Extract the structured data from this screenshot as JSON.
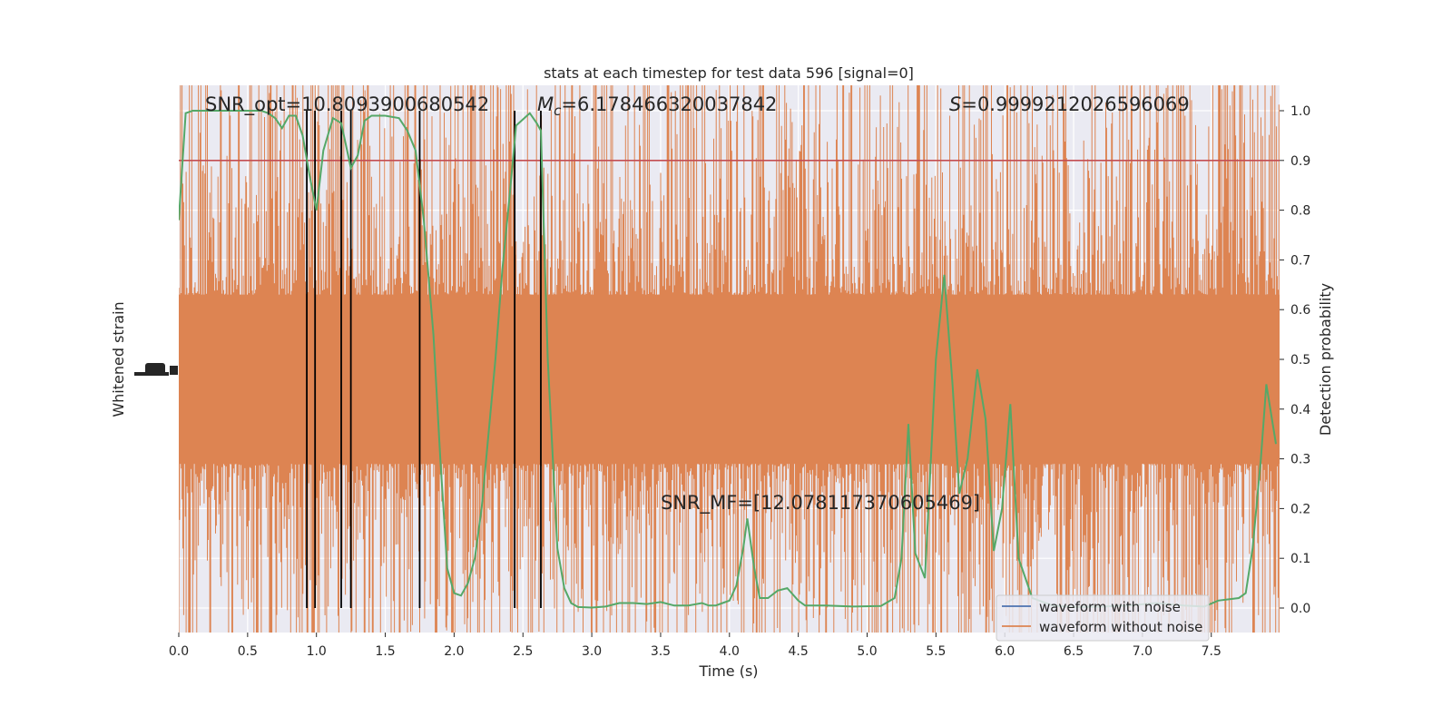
{
  "chart_data": {
    "type": "line",
    "title": "stats at each timestep for test data 596 [signal=0]",
    "xlabel": "Time (s)",
    "ylabel_left": "Whitened strain",
    "ylabel_right": "Detection probability",
    "xlim": [
      0.0,
      8.0
    ],
    "ylim_right": [
      -0.05,
      1.05
    ],
    "x_ticks": [
      "0.0",
      "0.5",
      "1.0",
      "1.5",
      "2.0",
      "2.5",
      "3.0",
      "3.5",
      "4.0",
      "4.5",
      "5.0",
      "5.5",
      "6.0",
      "6.5",
      "7.0",
      "7.5"
    ],
    "y_ticks_right": [
      "0.0",
      "0.1",
      "0.2",
      "0.3",
      "0.4",
      "0.5",
      "0.6",
      "0.7",
      "0.8",
      "0.9",
      "1.0"
    ],
    "grid": true,
    "legend_placement": "lower-right",
    "annotations": {
      "snr_opt": "SNR_opt=10.8093900680542",
      "mc_symbol": "M",
      "mc_sub": "c",
      "mc_value": "=6.178466320037842",
      "s_symbol": "S",
      "s_value": "=0.9999212026596069",
      "snr_mf": "SNR_MF=[12.078117370605469]"
    },
    "threshold": 0.9,
    "detection_lines_x": [
      0.93,
      0.99,
      1.18,
      1.25,
      1.75,
      2.44,
      2.63
    ],
    "series": [
      {
        "name": "waveform with noise",
        "color": "#4c72b0",
        "kind": "noise",
        "points": []
      },
      {
        "name": "waveform without noise",
        "color": "#dd8452",
        "kind": "noise",
        "band_center": 0.46,
        "band_core_halfwidth": 0.17,
        "points": []
      },
      {
        "name": "",
        "color": "#55a868",
        "kind": "line",
        "points": [
          [
            0.0,
            0.78
          ],
          [
            0.05,
            0.995
          ],
          [
            0.1,
            1.0
          ],
          [
            0.2,
            1.0
          ],
          [
            0.3,
            1.0
          ],
          [
            0.4,
            1.0
          ],
          [
            0.5,
            1.0
          ],
          [
            0.6,
            1.0
          ],
          [
            0.65,
            0.995
          ],
          [
            0.7,
            0.985
          ],
          [
            0.75,
            0.965
          ],
          [
            0.8,
            0.99
          ],
          [
            0.85,
            0.99
          ],
          [
            0.9,
            0.95
          ],
          [
            0.95,
            0.87
          ],
          [
            1.0,
            0.8
          ],
          [
            1.05,
            0.92
          ],
          [
            1.12,
            0.985
          ],
          [
            1.18,
            0.975
          ],
          [
            1.25,
            0.885
          ],
          [
            1.3,
            0.91
          ],
          [
            1.35,
            0.98
          ],
          [
            1.4,
            0.99
          ],
          [
            1.5,
            0.99
          ],
          [
            1.6,
            0.985
          ],
          [
            1.66,
            0.96
          ],
          [
            1.72,
            0.92
          ],
          [
            1.78,
            0.78
          ],
          [
            1.85,
            0.55
          ],
          [
            1.9,
            0.3
          ],
          [
            1.95,
            0.08
          ],
          [
            2.0,
            0.03
          ],
          [
            2.05,
            0.025
          ],
          [
            2.1,
            0.05
          ],
          [
            2.15,
            0.1
          ],
          [
            2.2,
            0.2
          ],
          [
            2.25,
            0.35
          ],
          [
            2.3,
            0.5
          ],
          [
            2.35,
            0.68
          ],
          [
            2.4,
            0.82
          ],
          [
            2.45,
            0.97
          ],
          [
            2.55,
            0.995
          ],
          [
            2.6,
            0.975
          ],
          [
            2.63,
            0.96
          ],
          [
            2.68,
            0.5
          ],
          [
            2.75,
            0.12
          ],
          [
            2.8,
            0.04
          ],
          [
            2.85,
            0.01
          ],
          [
            2.9,
            0.002
          ],
          [
            3.0,
            0.001
          ],
          [
            3.1,
            0.003
          ],
          [
            3.2,
            0.01
          ],
          [
            3.3,
            0.01
          ],
          [
            3.4,
            0.008
          ],
          [
            3.5,
            0.012
          ],
          [
            3.6,
            0.005
          ],
          [
            3.7,
            0.005
          ],
          [
            3.8,
            0.01
          ],
          [
            3.85,
            0.005
          ],
          [
            3.9,
            0.005
          ],
          [
            3.95,
            0.01
          ],
          [
            4.0,
            0.015
          ],
          [
            4.05,
            0.045
          ],
          [
            4.1,
            0.12
          ],
          [
            4.13,
            0.18
          ],
          [
            4.18,
            0.08
          ],
          [
            4.22,
            0.02
          ],
          [
            4.28,
            0.02
          ],
          [
            4.35,
            0.035
          ],
          [
            4.42,
            0.04
          ],
          [
            4.5,
            0.015
          ],
          [
            4.55,
            0.005
          ],
          [
            4.7,
            0.005
          ],
          [
            4.9,
            0.003
          ],
          [
            5.1,
            0.004
          ],
          [
            5.2,
            0.02
          ],
          [
            5.25,
            0.1
          ],
          [
            5.3,
            0.37
          ],
          [
            5.35,
            0.11
          ],
          [
            5.42,
            0.06
          ],
          [
            5.5,
            0.5
          ],
          [
            5.56,
            0.67
          ],
          [
            5.62,
            0.45
          ],
          [
            5.67,
            0.23
          ],
          [
            5.73,
            0.3
          ],
          [
            5.8,
            0.48
          ],
          [
            5.86,
            0.38
          ],
          [
            5.92,
            0.115
          ],
          [
            5.98,
            0.2
          ],
          [
            6.04,
            0.41
          ],
          [
            6.1,
            0.1
          ],
          [
            6.2,
            0.02
          ],
          [
            6.35,
            0.005
          ],
          [
            6.5,
            0.002
          ],
          [
            6.7,
            0.003
          ],
          [
            6.9,
            0.005
          ],
          [
            7.1,
            0.01
          ],
          [
            7.3,
            0.005
          ],
          [
            7.45,
            0.003
          ],
          [
            7.55,
            0.015
          ],
          [
            7.7,
            0.02
          ],
          [
            7.75,
            0.03
          ],
          [
            7.8,
            0.12
          ],
          [
            7.86,
            0.3
          ],
          [
            7.9,
            0.45
          ],
          [
            7.97,
            0.33
          ]
        ]
      }
    ]
  }
}
